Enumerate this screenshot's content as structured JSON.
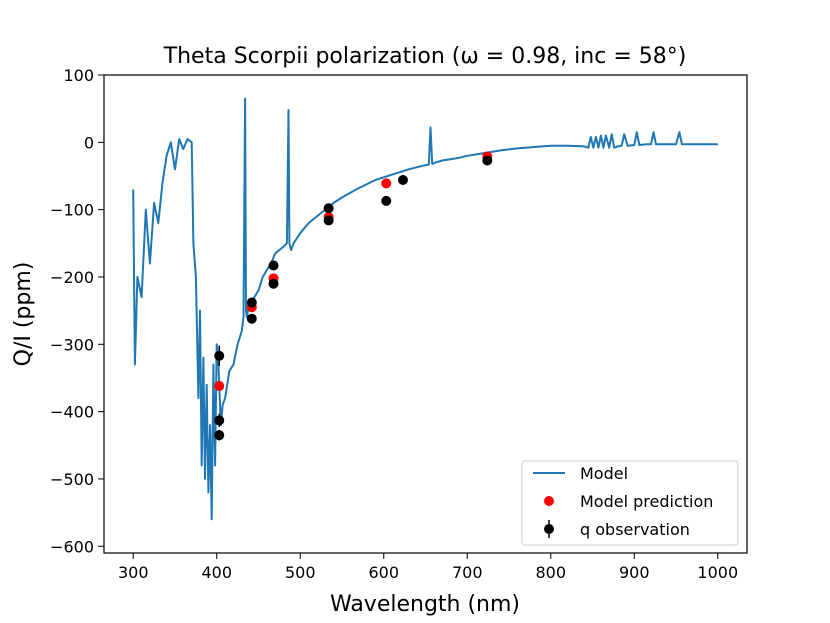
{
  "chart_data": {
    "type": "line",
    "title": "Theta Scorpii polarization (ω = 0.98, inc = 58°)",
    "xlabel": "Wavelength (nm)",
    "ylabel": "Q/I (ppm)",
    "xlim": [
      265,
      1035
    ],
    "ylim": [
      -610,
      100
    ],
    "xticks": [
      300,
      400,
      500,
      600,
      700,
      800,
      900,
      1000
    ],
    "yticks": [
      100,
      0,
      -100,
      -200,
      -300,
      -400,
      -500,
      -600
    ],
    "xtick_labels": [
      "300",
      "400",
      "500",
      "600",
      "700",
      "800",
      "900",
      "1000"
    ],
    "ytick_labels": [
      "100",
      "0",
      "−100",
      "−200",
      "−300",
      "−400",
      "−500",
      "−600"
    ],
    "grid": false,
    "legend_position": "lower-right",
    "series": [
      {
        "name": "Model",
        "kind": "line",
        "color": "#1f77b4",
        "x": [
          300,
          302,
          305,
          310,
          315,
          320,
          325,
          330,
          335,
          340,
          345,
          350,
          355,
          360,
          365,
          370,
          372,
          375,
          378,
          380,
          382,
          384,
          386,
          388,
          390,
          392,
          394,
          396,
          398,
          400,
          402,
          405,
          407,
          410,
          415,
          420,
          425,
          430,
          432,
          434,
          435,
          436,
          438,
          440,
          445,
          450,
          455,
          460,
          465,
          470,
          475,
          480,
          484,
          486,
          487,
          489,
          492,
          500,
          510,
          520,
          530,
          540,
          550,
          560,
          570,
          580,
          590,
          600,
          610,
          620,
          630,
          640,
          650,
          654,
          656,
          658,
          662,
          670,
          680,
          690,
          700,
          720,
          740,
          760,
          780,
          800,
          820,
          840,
          845,
          848,
          851,
          854,
          857,
          860,
          863,
          866,
          870,
          873,
          876,
          880,
          885,
          888,
          892,
          900,
          903,
          906,
          915,
          920,
          923,
          926,
          935,
          950,
          954,
          957,
          960,
          970,
          980,
          990,
          1000
        ],
        "y": [
          -70,
          -330,
          -200,
          -230,
          -100,
          -180,
          -90,
          -120,
          -60,
          -20,
          0,
          -40,
          5,
          -10,
          5,
          0,
          -150,
          -200,
          -380,
          -250,
          -480,
          -320,
          -500,
          -360,
          -520,
          -420,
          -560,
          -330,
          -480,
          -300,
          -330,
          -420,
          -390,
          -380,
          -340,
          -330,
          -300,
          -280,
          -260,
          65,
          -250,
          -260,
          -245,
          -245,
          -230,
          -220,
          -200,
          -190,
          -180,
          -165,
          -160,
          -155,
          -150,
          48,
          -150,
          -160,
          -150,
          -135,
          -120,
          -110,
          -100,
          -90,
          -82,
          -75,
          -68,
          -62,
          -56,
          -52,
          -48,
          -44,
          -40,
          -37,
          -34,
          -33,
          22,
          -32,
          -30,
          -27,
          -25,
          -23,
          -20,
          -16,
          -12,
          -9,
          -7,
          -5,
          -5,
          -6,
          -8,
          8,
          -8,
          8,
          -8,
          10,
          -8,
          10,
          -8,
          12,
          -8,
          -6,
          -5,
          12,
          -5,
          -4,
          15,
          -4,
          -3,
          -3,
          15,
          -3,
          -3,
          -3,
          15,
          -3,
          -3,
          -3,
          -3,
          -3,
          -3
        ]
      },
      {
        "name": "Model prediction",
        "kind": "scatter",
        "color": "#ff0000",
        "x": [
          403,
          442,
          468,
          534,
          603,
          724
        ],
        "y": [
          -362,
          -245,
          -202,
          -111,
          -61,
          -21
        ]
      },
      {
        "name": "q observation",
        "kind": "errorbar",
        "color": "#000000",
        "x": [
          403,
          403,
          403,
          442,
          442,
          468,
          468,
          534,
          534,
          603,
          623,
          724
        ],
        "y": [
          -317,
          -413,
          -435,
          -238,
          -262,
          -183,
          -210,
          -98,
          -116,
          -87,
          -56,
          -27
        ],
        "yerr": [
          15,
          10,
          8,
          6,
          6,
          5,
          5,
          5,
          5,
          4,
          4,
          4
        ]
      }
    ]
  }
}
